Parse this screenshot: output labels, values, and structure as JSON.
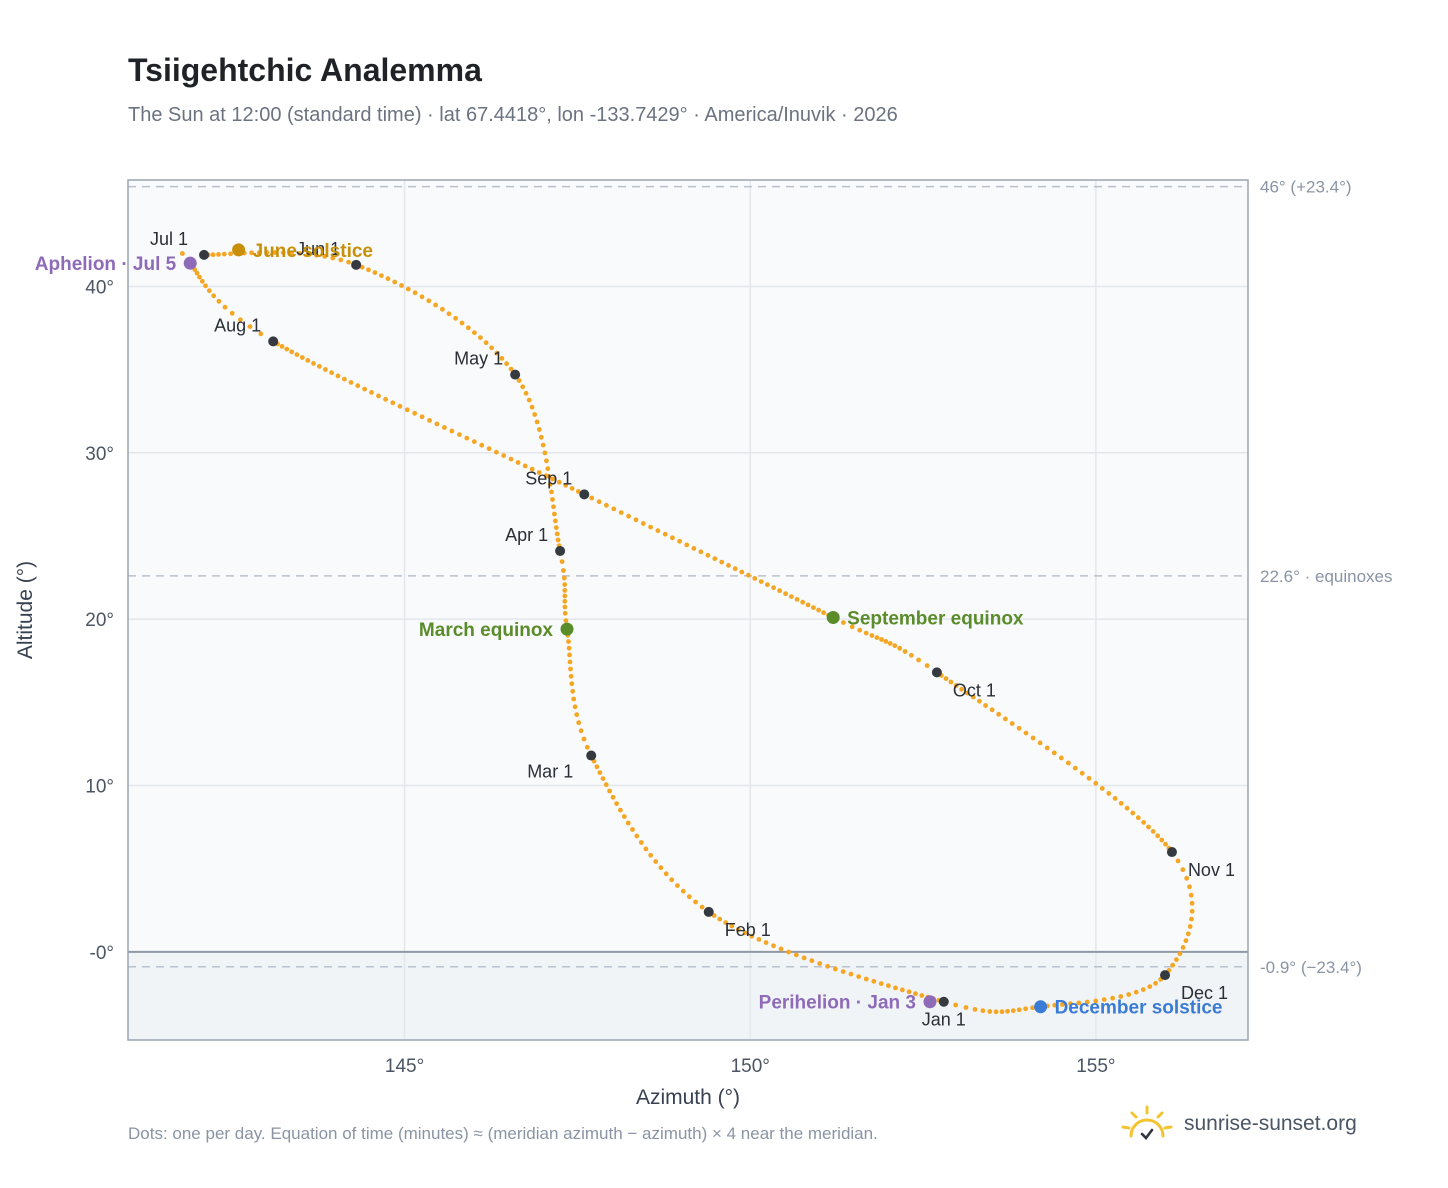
{
  "header": {
    "title": "Tsiigehtchic Analemma",
    "subtitle": "The Sun at 12:00 (standard time) · lat 67.4418°, lon -133.7429° · America/Inuvik · 2026"
  },
  "footer": {
    "note": "Dots: one per day. Equation of time (minutes) ≈ (meridian azimuth − azimuth) × 4 near the meridian.",
    "brand": "sunrise-sunset.org"
  },
  "colors": {
    "curve": "#f5a623",
    "month_marker": "#343a40",
    "equinox": "#5b8c2a",
    "june_solstice": "#c8900a",
    "december_solstice": "#3a7bd5",
    "apsis": "#8e6bb8",
    "plot_background": "#f8fafc",
    "below_horizon": "#f1f4f7",
    "logo": "#f4c430"
  },
  "chart_data": {
    "type": "scatter",
    "xlabel": "Azimuth (°)",
    "ylabel": "Altitude (°)",
    "xlim": [
      141.0,
      157.2
    ],
    "ylim": [
      -5.3,
      46.4
    ],
    "xticks": [
      {
        "value": 145,
        "label": "145°"
      },
      {
        "value": 150,
        "label": "150°"
      },
      {
        "value": 155,
        "label": "155°"
      }
    ],
    "yticks": [
      {
        "value": 0,
        "label": "-0°"
      },
      {
        "value": 10,
        "label": "10°"
      },
      {
        "value": 20,
        "label": "20°"
      },
      {
        "value": 30,
        "label": "30°"
      },
      {
        "value": 40,
        "label": "40°"
      }
    ],
    "grid": true,
    "reference_lines": [
      {
        "y": 46.0,
        "label": "46° (+23.4°)"
      },
      {
        "y": 22.6,
        "label": "22.6° · equinoxes"
      },
      {
        "y": -0.9,
        "label": "-0.9° (−23.4°)"
      }
    ],
    "horizon": 0,
    "path_keypoints": [
      {
        "x": 152.8,
        "y": -3.0
      },
      {
        "x": 149.4,
        "y": 2.4
      },
      {
        "x": 147.7,
        "y": 11.8
      },
      {
        "x": 147.35,
        "y": 19.4
      },
      {
        "x": 147.25,
        "y": 24.1
      },
      {
        "x": 146.6,
        "y": 34.7
      },
      {
        "x": 144.3,
        "y": 41.3
      },
      {
        "x": 142.1,
        "y": 41.9
      },
      {
        "x": 141.9,
        "y": 41.4
      },
      {
        "x": 143.1,
        "y": 36.7
      },
      {
        "x": 147.6,
        "y": 27.5
      },
      {
        "x": 151.2,
        "y": 20.1
      },
      {
        "x": 152.7,
        "y": 16.8
      },
      {
        "x": 156.1,
        "y": 6.0
      },
      {
        "x": 156.0,
        "y": -1.4
      },
      {
        "x": 154.2,
        "y": -3.3
      },
      {
        "x": 152.8,
        "y": -3.0
      }
    ],
    "month_markers": [
      {
        "label": "Jan 1",
        "x": 152.8,
        "y": -3.0,
        "anchor": "below"
      },
      {
        "label": "Feb 1",
        "x": 149.4,
        "y": 2.4,
        "anchor": "below-right"
      },
      {
        "label": "Mar 1",
        "x": 147.7,
        "y": 11.8,
        "anchor": "below-left"
      },
      {
        "label": "Apr 1",
        "x": 147.25,
        "y": 24.1,
        "anchor": "left"
      },
      {
        "label": "May 1",
        "x": 146.6,
        "y": 34.7,
        "anchor": "left"
      },
      {
        "label": "Jun 1",
        "x": 144.3,
        "y": 41.3,
        "anchor": "above-left"
      },
      {
        "label": "Jul 1",
        "x": 142.1,
        "y": 41.9,
        "anchor": "above-left"
      },
      {
        "label": "Aug 1",
        "x": 143.1,
        "y": 36.7,
        "anchor": "left"
      },
      {
        "label": "Sep 1",
        "x": 147.6,
        "y": 27.5,
        "anchor": "left"
      },
      {
        "label": "Oct 1",
        "x": 152.7,
        "y": 16.8,
        "anchor": "below-right"
      },
      {
        "label": "Nov 1",
        "x": 156.1,
        "y": 6.0,
        "anchor": "below-right"
      },
      {
        "label": "Dec 1",
        "x": 156.0,
        "y": -1.4,
        "anchor": "below-right"
      }
    ],
    "special_points": [
      {
        "label": "March equinox",
        "x": 147.35,
        "y": 19.4,
        "color": "#5b8c2a",
        "anchor": "left"
      },
      {
        "label": "June solstice",
        "x": 142.6,
        "y": 42.2,
        "color": "#c8900a",
        "anchor": "right"
      },
      {
        "label": "September equinox",
        "x": 151.2,
        "y": 20.1,
        "color": "#5b8c2a",
        "anchor": "right"
      },
      {
        "label": "December solstice",
        "x": 154.2,
        "y": 3.3,
        "y_sign": -1,
        "color": "#3a7bd5",
        "anchor": "right"
      },
      {
        "label": "Perihelion · Jan 3",
        "x": 152.6,
        "y": 3.0,
        "y_sign": -1,
        "color": "#8e6bb8",
        "anchor": "left"
      },
      {
        "label": "Aphelion · Jul 5",
        "x": 141.9,
        "y": 41.4,
        "color": "#8e6bb8",
        "anchor": "left"
      }
    ]
  }
}
